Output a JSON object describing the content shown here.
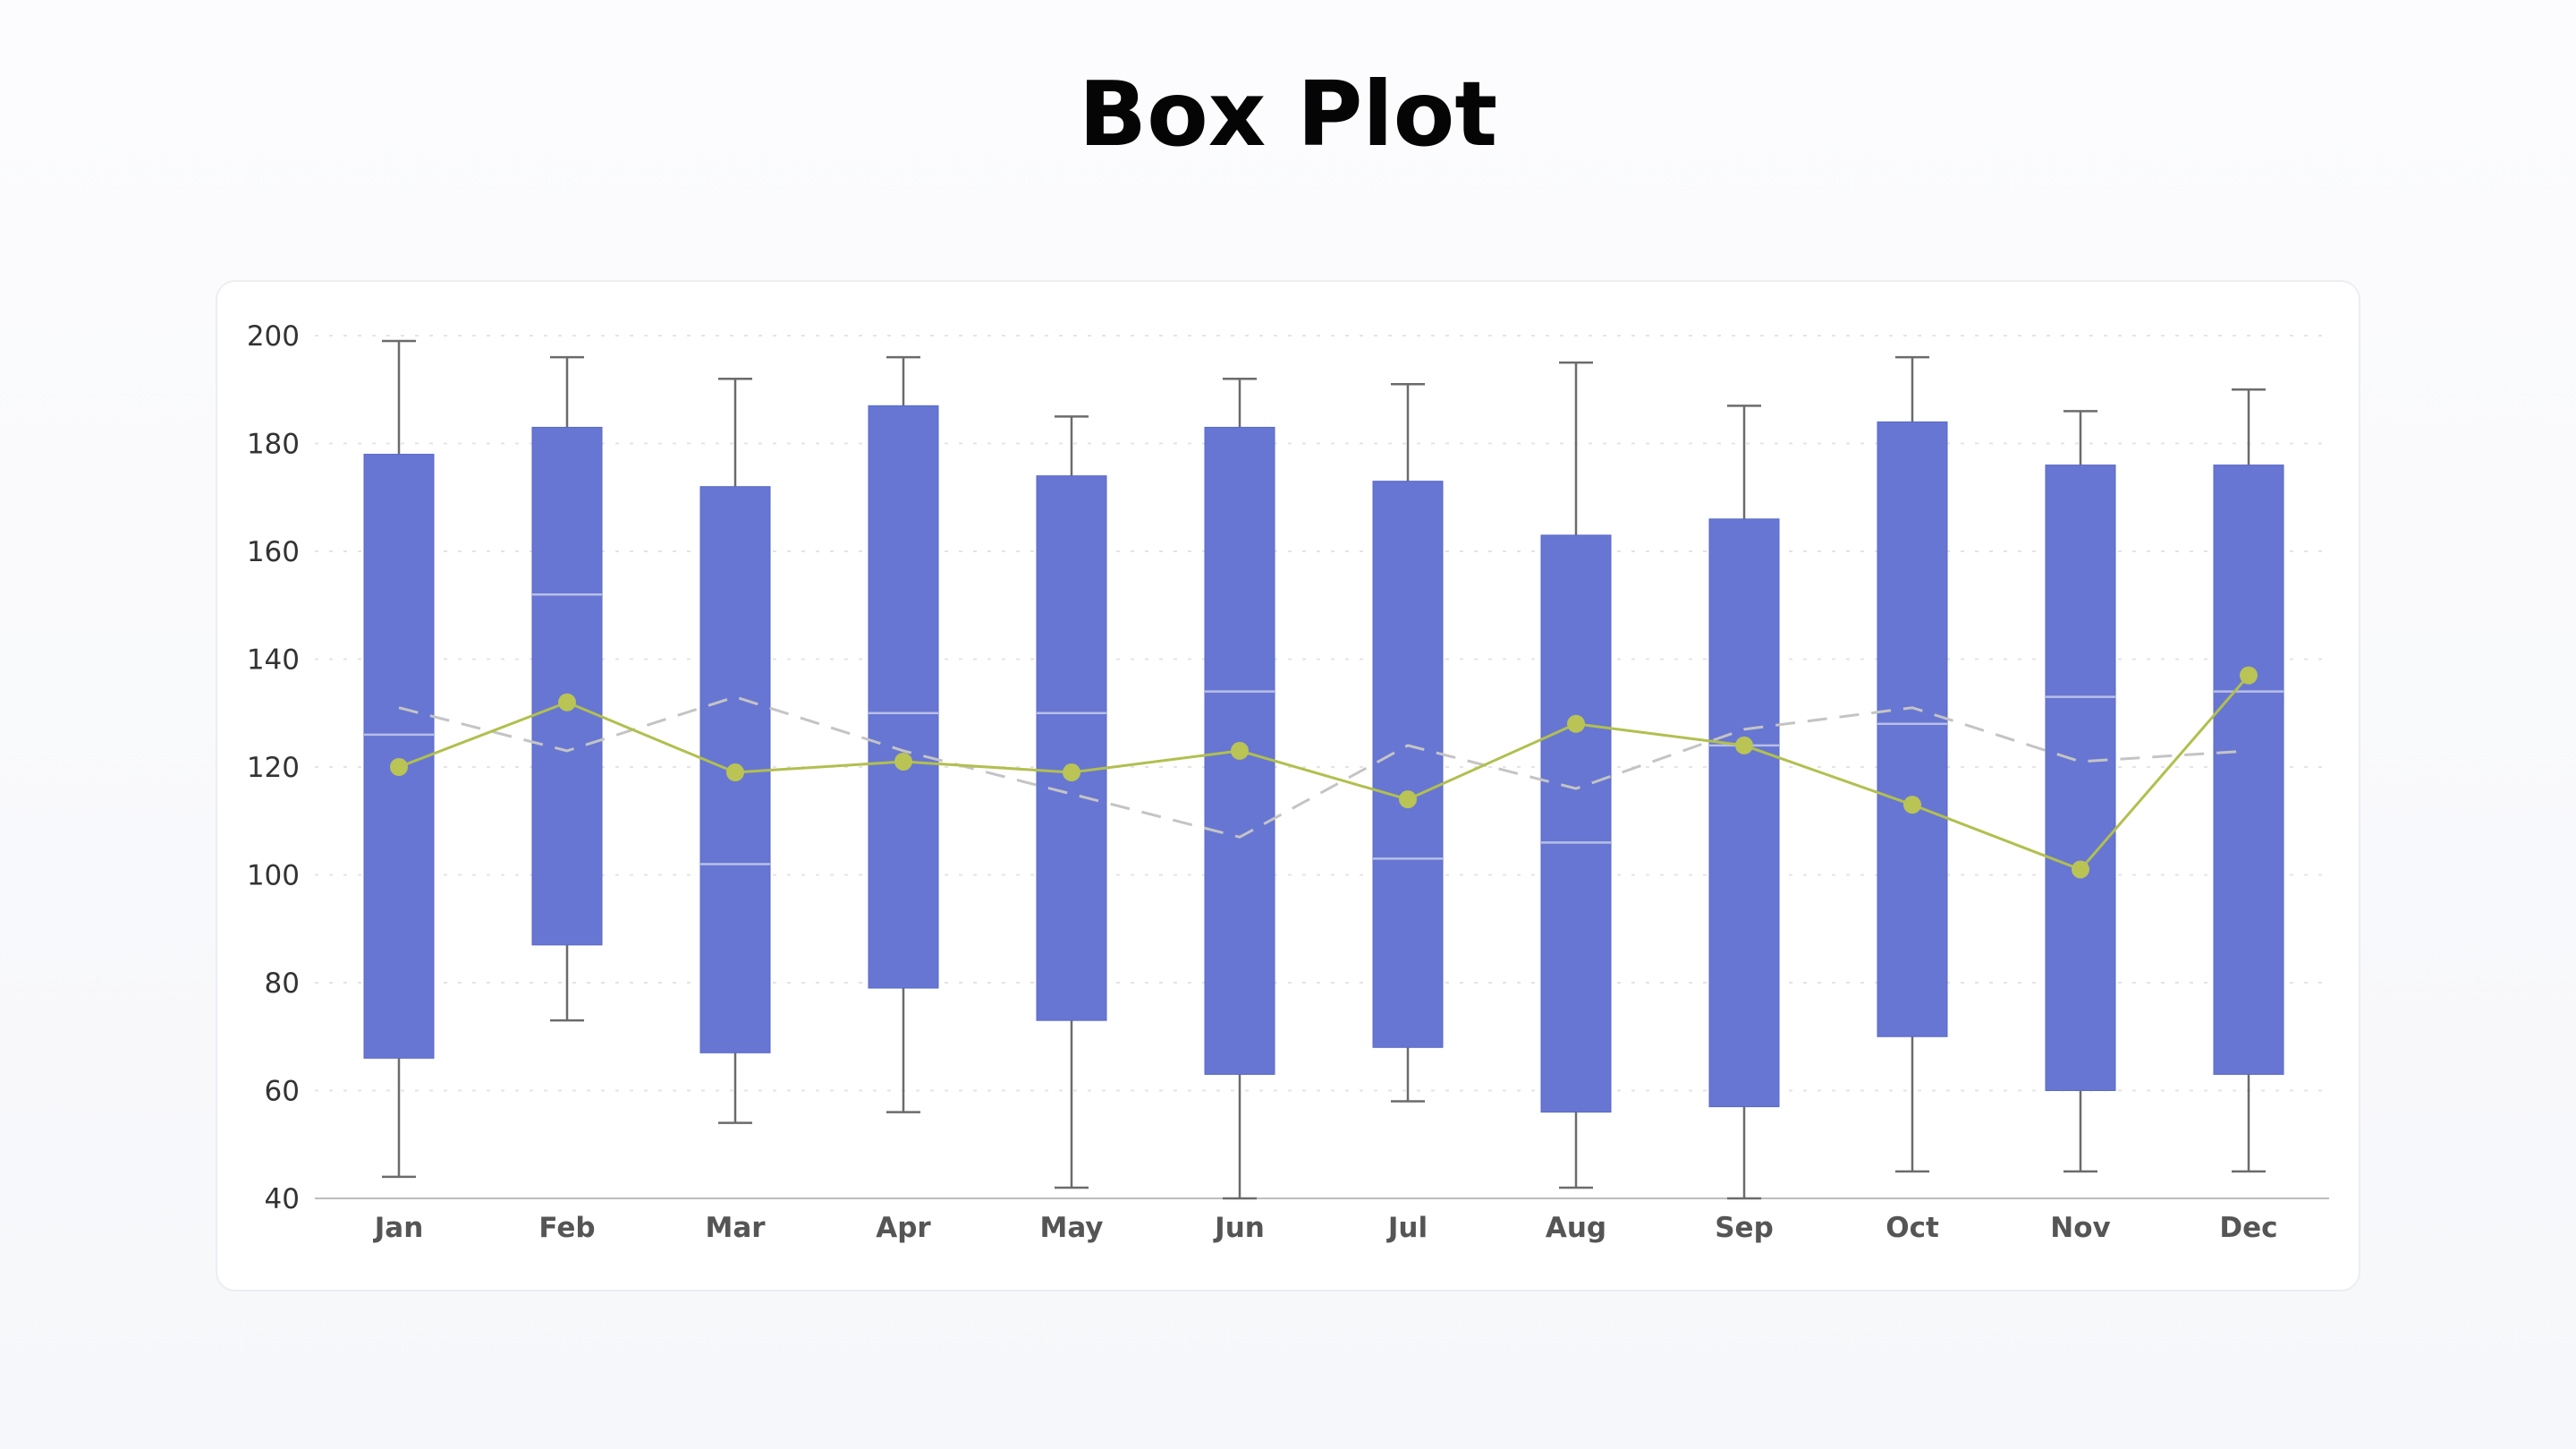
{
  "page": {
    "title": "Box Plot"
  },
  "colors": {
    "box_fill": "#6776d2",
    "median_line": "#b8bfe6",
    "whisker": "#6b6b6b",
    "mean_line": "#b2bf4e",
    "mean_marker": "#b9c455",
    "reference_line": "#c4c4c4",
    "grid": "#e4e4e4",
    "axis": "#bdbdbd"
  },
  "chart_data": {
    "type": "box",
    "title": "Box Plot",
    "xlabel": "",
    "ylabel": "",
    "ylim": [
      40,
      200
    ],
    "yticks": [
      40,
      60,
      80,
      100,
      120,
      140,
      160,
      180,
      200
    ],
    "grid": "horizontal-dashed",
    "legend": "none",
    "categories": [
      "Jan",
      "Feb",
      "Mar",
      "Apr",
      "May",
      "Jun",
      "Jul",
      "Aug",
      "Sep",
      "Oct",
      "Nov",
      "Dec"
    ],
    "boxes": [
      {
        "min": 44,
        "q1": 66,
        "median": 126,
        "q3": 178,
        "max": 199
      },
      {
        "min": 73,
        "q1": 87,
        "median": 152,
        "q3": 183,
        "max": 196
      },
      {
        "min": 54,
        "q1": 67,
        "median": 102,
        "q3": 172,
        "max": 192
      },
      {
        "min": 56,
        "q1": 79,
        "median": 130,
        "q3": 187,
        "max": 196
      },
      {
        "min": 42,
        "q1": 73,
        "median": 130,
        "q3": 174,
        "max": 185
      },
      {
        "min": 40,
        "q1": 63,
        "median": 134,
        "q3": 183,
        "max": 192
      },
      {
        "min": 58,
        "q1": 68,
        "median": 103,
        "q3": 173,
        "max": 191
      },
      {
        "min": 42,
        "q1": 56,
        "median": 106,
        "q3": 163,
        "max": 195
      },
      {
        "min": 40,
        "q1": 57,
        "median": 124,
        "q3": 166,
        "max": 187
      },
      {
        "min": 45,
        "q1": 70,
        "median": 128,
        "q3": 184,
        "max": 196
      },
      {
        "min": 45,
        "q1": 60,
        "median": 133,
        "q3": 176,
        "max": 186
      },
      {
        "min": 45,
        "q1": 63,
        "median": 134,
        "q3": 176,
        "max": 190
      }
    ],
    "line_series": [
      120,
      132,
      119,
      121,
      119,
      123,
      114,
      128,
      124,
      113,
      101,
      137
    ],
    "dashed_series": [
      131,
      123,
      133,
      123,
      115,
      107,
      124,
      116,
      127,
      131,
      121,
      123
    ]
  }
}
